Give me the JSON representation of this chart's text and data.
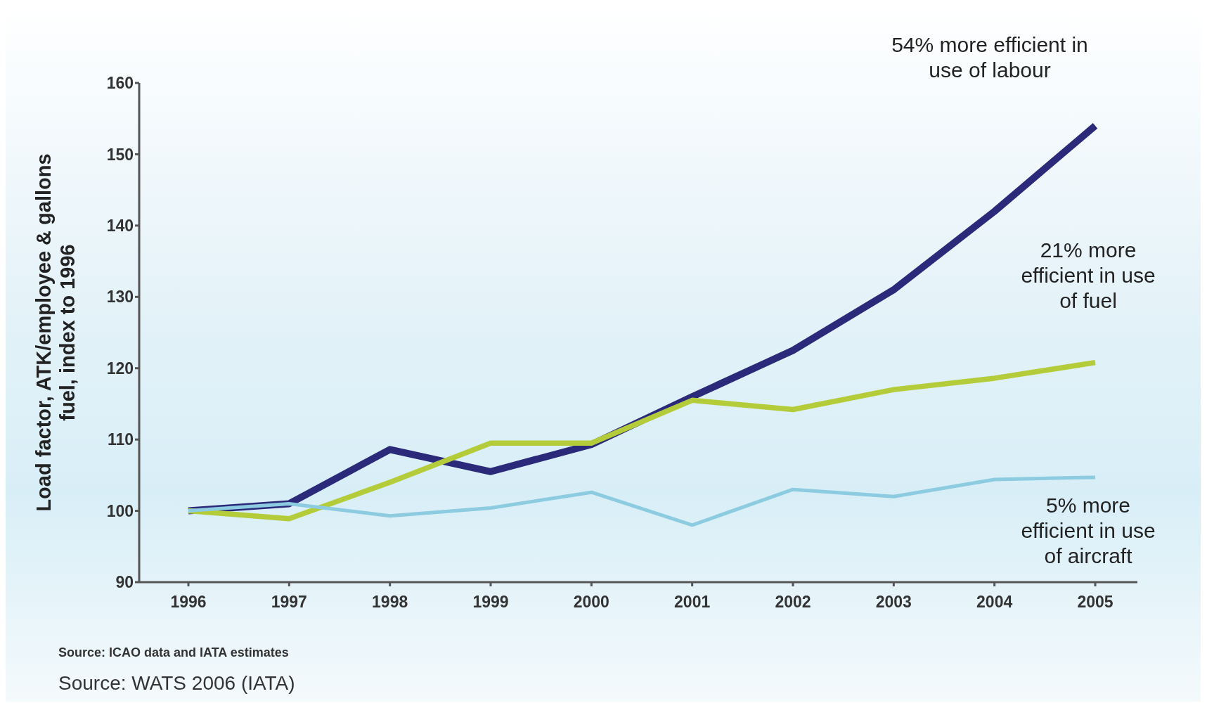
{
  "chart_data": {
    "type": "line",
    "ylabel": "Load factor, ATK/employee & gallons fuel, index to 1996",
    "categories": [
      "1996",
      "1997",
      "1998",
      "1999",
      "2000",
      "2001",
      "2002",
      "2003",
      "2004",
      "2005"
    ],
    "series": [
      {
        "color": "#2b2a7a",
        "values": [
          100,
          101,
          108.6,
          105.5,
          109.3,
          116,
          122.5,
          131,
          142,
          154
        ]
      },
      {
        "color": "#b5cc3a",
        "values": [
          100,
          98.9,
          104,
          109.5,
          109.5,
          115.5,
          114.2,
          117,
          118.6,
          120.8
        ]
      },
      {
        "color": "#8ccbe0",
        "values": [
          100,
          101,
          99.3,
          100.4,
          102.6,
          98,
          103,
          102,
          104.4,
          104.7
        ]
      }
    ],
    "ylim": [
      90,
      160
    ],
    "yticks": [
      90,
      100,
      110,
      120,
      130,
      140,
      150,
      160
    ],
    "grid": false,
    "legend": false,
    "marker": "none",
    "line_style": "solid",
    "annotations": [
      {
        "text": "54% more efficient in use of labour",
        "x": "2005",
        "y": 154
      },
      {
        "text": "21% more efficient in use of fuel",
        "x": "2005",
        "y": 120.8
      },
      {
        "text": "5% more efficient in use of aircraft",
        "x": "2005",
        "y": 104.7
      },
      "Source: ICAO data and IATA estimates",
      "Source: WATS 2006 (IATA)"
    ]
  }
}
